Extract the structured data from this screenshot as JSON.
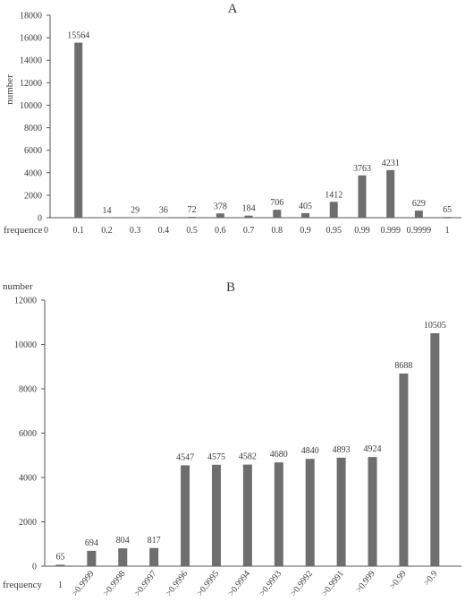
{
  "chart_data": [
    {
      "type": "bar",
      "title": "A",
      "ylabel": "number",
      "xlabel": "frequence",
      "ylim": [
        0,
        18000
      ],
      "yticks": [
        0,
        2000,
        4000,
        6000,
        8000,
        10000,
        12000,
        14000,
        16000,
        18000
      ],
      "categories": [
        "0.1",
        "0.2",
        "0.3",
        "0.4",
        "0.5",
        "0.6",
        "0.7",
        "0.8",
        "0.9",
        "0.95",
        "0.99",
        "0.999",
        "0.9999",
        "1"
      ],
      "values": [
        15564,
        14,
        29,
        36,
        72,
        378,
        184,
        706,
        405,
        1412,
        3763,
        4231,
        629,
        65
      ],
      "x_start_label": "0",
      "bar_color": "#6e6e6e",
      "grid": false
    },
    {
      "type": "bar",
      "title": "B",
      "ylabel": "number",
      "xlabel": "frequency",
      "ylim": [
        0,
        12000
      ],
      "yticks": [
        0,
        2000,
        4000,
        6000,
        8000,
        10000,
        12000
      ],
      "categories": [
        "1",
        ">0.9999",
        ">0.9998",
        ">0.9997",
        ">0.9996",
        ">0.9995",
        ">0.9994",
        ">0.9993",
        ">0.9992",
        ">0.9991",
        ">0.999",
        ">0.99",
        ">0.9"
      ],
      "values": [
        65,
        694,
        804,
        817,
        4547,
        4575,
        4582,
        4680,
        4840,
        4893,
        4924,
        8688,
        10505
      ],
      "bar_color": "#6e6e6e",
      "grid": false
    }
  ]
}
